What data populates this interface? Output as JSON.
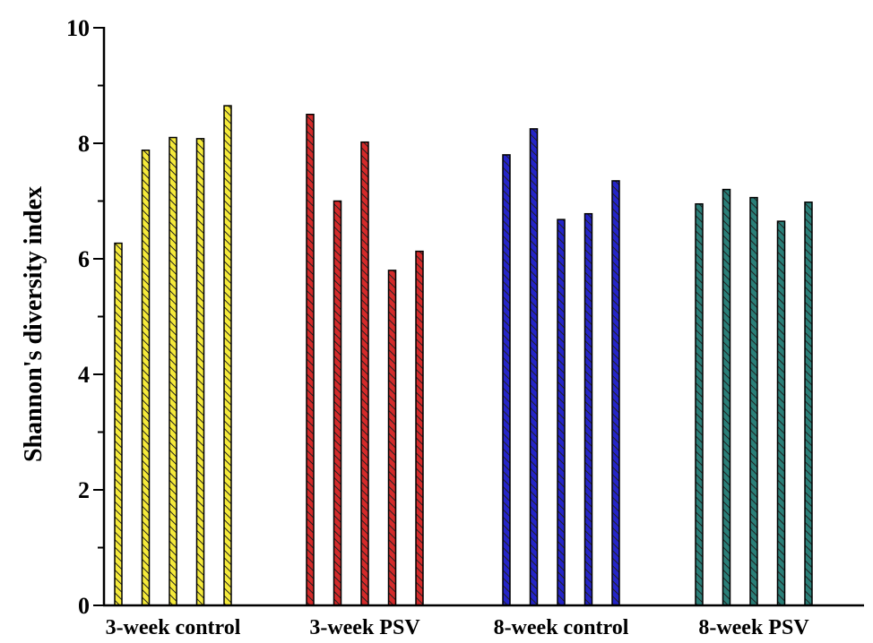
{
  "chart_data": {
    "type": "bar",
    "title": "",
    "xlabel": "",
    "ylabel": "Shannon's diversity index",
    "ylim": [
      0,
      10
    ],
    "yticks": [
      "0",
      "2",
      "4",
      "6",
      "8",
      "10"
    ],
    "grid": false,
    "legend": "none",
    "groups": [
      {
        "label": "3-week control",
        "color": "#f5ea3a",
        "values": [
          6.27,
          7.88,
          8.1,
          8.08,
          8.65
        ]
      },
      {
        "label": "3-week PSV",
        "color": "#d42a2a",
        "values": [
          8.5,
          7.0,
          8.02,
          5.8,
          6.13
        ]
      },
      {
        "label": "8-week control",
        "color": "#2424c8",
        "values": [
          7.8,
          8.25,
          6.68,
          6.78,
          7.35
        ]
      },
      {
        "label": "8-week PSV",
        "color": "#2a7f78",
        "values": [
          6.95,
          7.2,
          7.06,
          6.65,
          6.98
        ]
      }
    ]
  }
}
